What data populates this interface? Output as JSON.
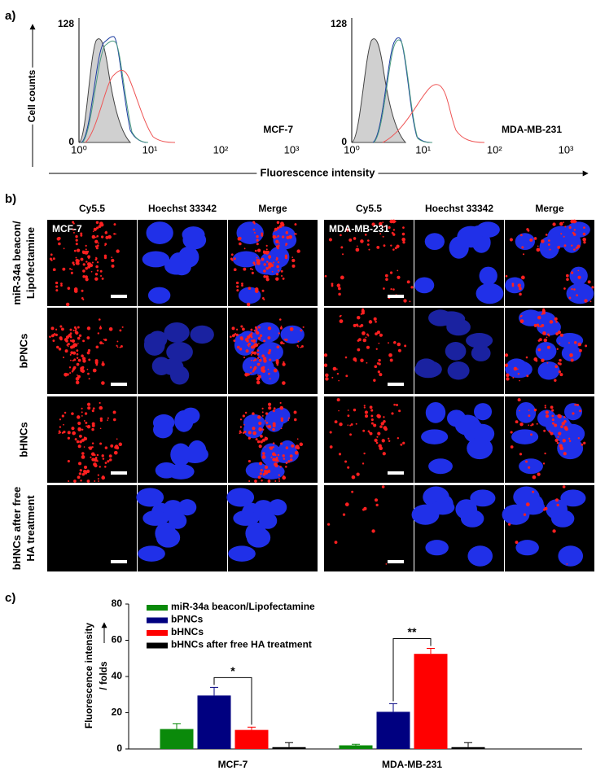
{
  "panel_a": {
    "label": "a)",
    "y_label": "Cell counts",
    "x_label": "Fluorescence intensity",
    "ylim": [
      0,
      128
    ],
    "yticks": [
      0,
      128
    ],
    "xlim": [
      1,
      1000
    ],
    "x_log": true,
    "xticks": [
      {
        "value": 1,
        "label": "10⁰"
      },
      {
        "value": 10,
        "label": "10¹"
      },
      {
        "value": 100,
        "label": "10²"
      },
      {
        "value": 1000,
        "label": "10³"
      }
    ],
    "plots": [
      {
        "title": "MCF-7"
      },
      {
        "title": "MDA-MB-231"
      }
    ]
  },
  "panel_b": {
    "label": "b)",
    "columns": [
      "Cy5.5",
      "Hoechst 33342",
      "Merge"
    ],
    "rows": [
      [
        "miR-34a beacon/",
        "Lipofectamine"
      ],
      [
        "bPNCs"
      ],
      [
        "bHNCs"
      ],
      [
        "bHNCs after free",
        "HA treatment"
      ]
    ],
    "cell_lines": [
      "MCF-7",
      "MDA-MB-231"
    ]
  },
  "chart_data": {
    "type": "bar",
    "panel_label": "c)",
    "y_label": [
      "Fluorescence intensity",
      "/ folds"
    ],
    "categories": [
      "MCF-7",
      "MDA-MB-231"
    ],
    "series": [
      {
        "name": "miR-34a beacon/Lipofectamine",
        "color": "#0a8a0a",
        "values": [
          11,
          2
        ],
        "errors": [
          3,
          0.6
        ]
      },
      {
        "name": "bPNCs",
        "color": "#000080",
        "values": [
          29.5,
          20.5
        ],
        "errors": [
          4.5,
          4.5
        ]
      },
      {
        "name": "bHNCs",
        "color": "#ff0000",
        "values": [
          10.5,
          52.5
        ],
        "errors": [
          1.5,
          3
        ]
      },
      {
        "name": "bHNCs after free HA treatment",
        "color": "#000000",
        "values": [
          1,
          1
        ],
        "errors": [
          2.5,
          2.5
        ]
      }
    ],
    "ylim": [
      0,
      80
    ],
    "yticks": [
      0,
      20,
      40,
      60,
      80
    ],
    "legend": "upper left",
    "annotations": [
      "*",
      "**"
    ]
  }
}
